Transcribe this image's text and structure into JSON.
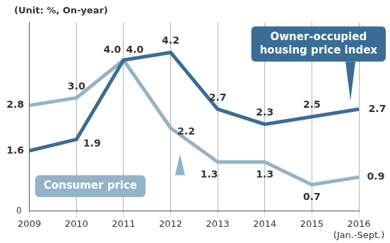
{
  "chart_data": {
    "type": "line",
    "title": "(Unit: %, On-year)",
    "categories": [
      "2009",
      "2010",
      "2011",
      "2012",
      "2013",
      "2014",
      "2015",
      "2016\n(Jan.-Sept.)"
    ],
    "series": [
      {
        "name": "Owner-occupied housing price index",
        "color": "#3a6d96",
        "values": [
          1.6,
          1.9,
          4.0,
          4.2,
          2.7,
          2.3,
          2.5,
          2.7
        ],
        "value_labels": [
          "1.6",
          "1.9",
          "4.0",
          "4.2",
          "2.7",
          "2.3",
          "2.5",
          "2.7"
        ]
      },
      {
        "name": "Consumer price",
        "color": "#93b3c8",
        "values": [
          2.8,
          3.0,
          4.0,
          2.2,
          1.3,
          1.3,
          0.7,
          0.9
        ],
        "value_labels": [
          "2.8",
          "3.0",
          "4.0",
          "2.2",
          "1.3",
          "1.3",
          "0.7",
          "0.9"
        ]
      }
    ],
    "ylim": [
      0,
      5
    ],
    "yticks": [
      0
    ],
    "grid": true,
    "data_labels": true
  }
}
